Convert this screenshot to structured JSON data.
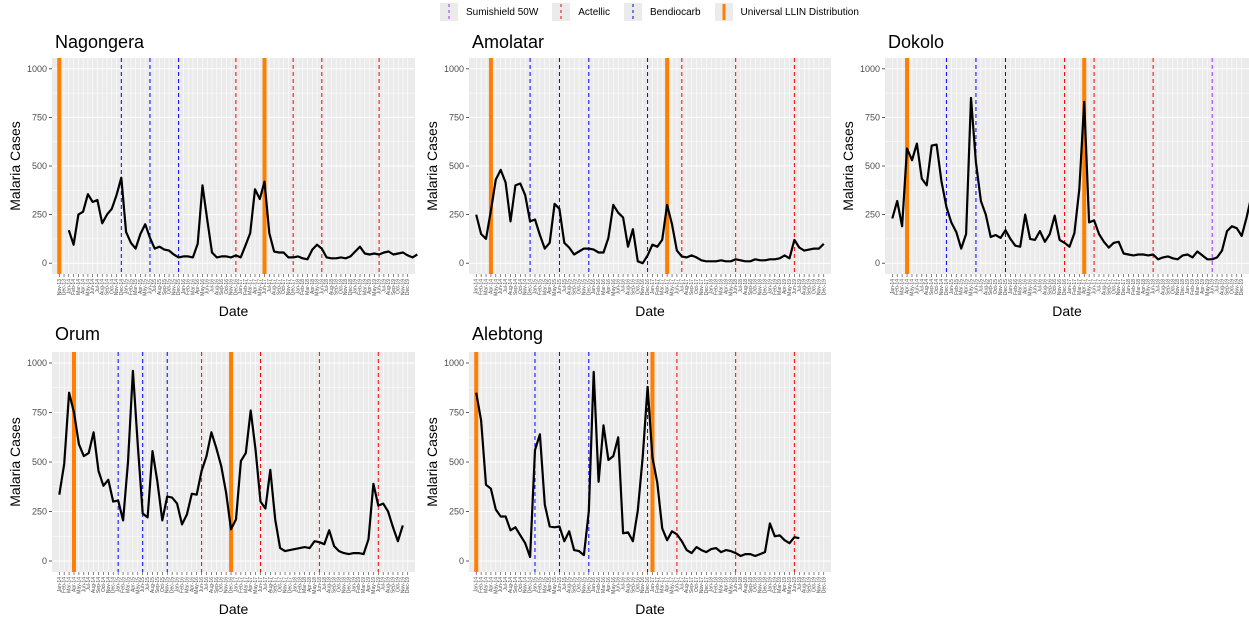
{
  "legend": {
    "items": [
      {
        "label": "Sumishield 50W",
        "color": "#9b30ff",
        "style": "dashed"
      },
      {
        "label": "Actellic",
        "color": "#ff0000",
        "style": "dashed"
      },
      {
        "label": "Bendiocarb",
        "color": "#0000ff",
        "style": "dashed"
      },
      {
        "label": "Universal LLIN Distribution",
        "color": "#ff7f00",
        "style": "solid"
      }
    ]
  },
  "common": {
    "xlabel": "Date",
    "ylabel": "Malaria Cases",
    "ylim": [
      0,
      1000
    ],
    "yticks": [
      0,
      250,
      500,
      750,
      1000
    ]
  },
  "chart_data": [
    {
      "type": "line",
      "title": "Nagongera",
      "x_start": "Nov 2013",
      "x_end": "Dec 2019",
      "series": [
        {
          "values": [
            null,
            null,
            170,
            95,
            250,
            265,
            355,
            315,
            325,
            205,
            250,
            280,
            350,
            440,
            160,
            105,
            75,
            150,
            200,
            130,
            75,
            85,
            70,
            65,
            45,
            30,
            35,
            35,
            30,
            100,
            400,
            225,
            55,
            30,
            35,
            35,
            30,
            40,
            30,
            90,
            155,
            380,
            330,
            420,
            155,
            60,
            55,
            55,
            30,
            30,
            35,
            25,
            20,
            70,
            95,
            75,
            30,
            25,
            25,
            30,
            25,
            35,
            60,
            85,
            50,
            45,
            50,
            45,
            55,
            60,
            45,
            50,
            55,
            40,
            30,
            45
          ]
        }
      ],
      "llin": [
        "Nov 2013",
        "Jun 2017"
      ],
      "bendiocarb": [
        "Dec 2014",
        "Jun 2015",
        "Dec 2015"
      ],
      "actellic": [
        "Dec 2016",
        "Dec 2017",
        "Jun 2018",
        "Jun 2019"
      ],
      "sumishield": []
    },
    {
      "type": "line",
      "title": "Amolatar",
      "x_start": "Jan 2014",
      "x_end": "Dec 2019",
      "series": [
        {
          "values": [
            250,
            150,
            125,
            270,
            430,
            480,
            415,
            215,
            400,
            410,
            350,
            215,
            225,
            145,
            75,
            105,
            305,
            280,
            105,
            80,
            45,
            60,
            75,
            75,
            70,
            55,
            55,
            130,
            300,
            260,
            235,
            85,
            175,
            10,
            0,
            40,
            95,
            85,
            120,
            300,
            200,
            65,
            35,
            30,
            40,
            30,
            15,
            10,
            10,
            10,
            15,
            10,
            10,
            20,
            15,
            10,
            10,
            20,
            15,
            15,
            20,
            20,
            25,
            40,
            25,
            120,
            80,
            65,
            70,
            75,
            75,
            100
          ]
        }
      ],
      "llin": [
        "Apr 2014",
        "Apr 2017"
      ],
      "bendiocarb": [
        "Dec 2014",
        "Jun 2015",
        "Dec 2015",
        "Dec 2016"
      ],
      "actellic": [
        "Jul 2017",
        "Jun 2018",
        "Jun 2019"
      ],
      "sumishield": []
    },
    {
      "type": "line",
      "title": "Dokolo",
      "x_start": "Jan 2014",
      "x_end": "Dec 2019",
      "series": [
        {
          "values": [
            230,
            320,
            190,
            590,
            530,
            615,
            435,
            400,
            605,
            610,
            420,
            290,
            210,
            160,
            75,
            150,
            850,
            520,
            320,
            250,
            135,
            145,
            130,
            170,
            125,
            90,
            85,
            250,
            125,
            120,
            165,
            110,
            150,
            245,
            120,
            105,
            85,
            155,
            380,
            830,
            210,
            220,
            150,
            110,
            80,
            105,
            110,
            50,
            45,
            40,
            45,
            45,
            40,
            45,
            20,
            30,
            35,
            25,
            20,
            40,
            45,
            30,
            60,
            40,
            20,
            20,
            30,
            65,
            165,
            190,
            180,
            140,
            235,
            350,
            545
          ]
        }
      ],
      "llin": [
        "Apr 2014",
        "Apr 2017"
      ],
      "bendiocarb": [
        "Dec 2014",
        "Jun 2015",
        "Dec 2015"
      ],
      "actellic": [
        "Dec 2016",
        "Jun 2017",
        "Jun 2018"
      ],
      "sumishield": [
        "Jun 2019"
      ]
    },
    {
      "type": "line",
      "title": "Orum",
      "x_start": "Jan 2014",
      "x_end": "Dec 2019",
      "series": [
        {
          "values": [
            335,
            490,
            850,
            750,
            590,
            530,
            545,
            650,
            455,
            380,
            410,
            300,
            305,
            205,
            500,
            960,
            585,
            240,
            220,
            555,
            400,
            205,
            325,
            320,
            290,
            185,
            235,
            340,
            335,
            455,
            530,
            650,
            570,
            480,
            345,
            160,
            210,
            505,
            545,
            760,
            560,
            300,
            265,
            460,
            210,
            65,
            50,
            55,
            60,
            65,
            70,
            65,
            100,
            95,
            85,
            155,
            75,
            50,
            40,
            35,
            40,
            40,
            35,
            110,
            390,
            280,
            290,
            250,
            170,
            100,
            180
          ]
        }
      ],
      "llin": [
        "Apr 2014",
        "Dec 2016"
      ],
      "bendiocarb": [
        "Jan 2015",
        "Jun 2015",
        "Nov 2015"
      ],
      "actellic": [
        "Jun 2016",
        "Jun 2017",
        "Jun 2018",
        "Jun 2019"
      ],
      "sumishield": []
    },
    {
      "type": "line",
      "title": "Alebtong",
      "x_start": "Jan 2014",
      "x_end": "Dec 2019",
      "series": [
        {
          "values": [
            850,
            710,
            385,
            365,
            260,
            225,
            225,
            155,
            170,
            130,
            90,
            20,
            560,
            640,
            285,
            175,
            170,
            175,
            100,
            150,
            55,
            50,
            30,
            250,
            955,
            400,
            685,
            510,
            530,
            625,
            140,
            145,
            100,
            255,
            525,
            880,
            525,
            395,
            165,
            105,
            150,
            135,
            100,
            55,
            40,
            70,
            55,
            45,
            60,
            65,
            45,
            55,
            50,
            40,
            25,
            35,
            35,
            25,
            35,
            45,
            190,
            125,
            130,
            105,
            90,
            120,
            115
          ]
        }
      ],
      "llin": [
        "Jan 2014",
        "Jan 2017"
      ],
      "bendiocarb": [
        "Jan 2015",
        "Jun 2015",
        "Dec 2015",
        "Dec 2016"
      ],
      "actellic": [
        "Jun 2017",
        "Jun 2018",
        "Jun 2019"
      ],
      "sumishield": []
    }
  ]
}
